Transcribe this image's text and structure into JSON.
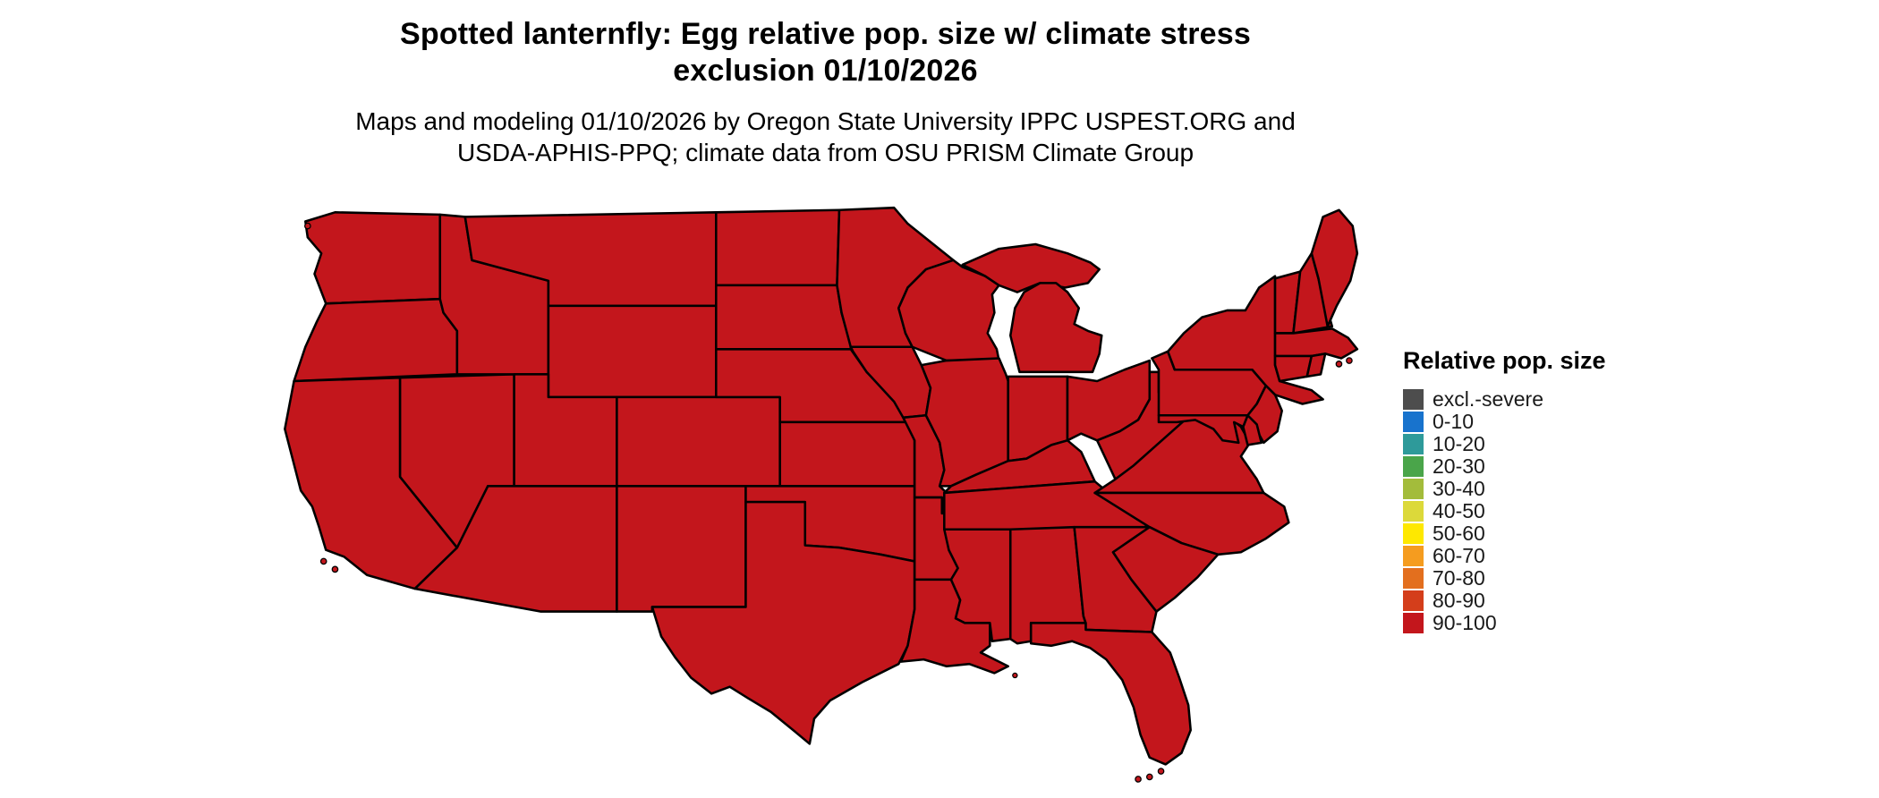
{
  "page": {
    "background": "#ffffff"
  },
  "title": {
    "line1": "Spotted lanternfly: Egg relative pop. size w/ climate stress",
    "line2": "exclusion 01/10/2026"
  },
  "subtitle": {
    "line1": "Maps and modeling 01/10/2026 by Oregon State University IPPC USPEST.ORG and",
    "line2": "USDA-APHIS-PPQ; climate data from OSU PRISM Climate Group"
  },
  "legend": {
    "title": "Relative pop. size",
    "items": [
      {
        "label": "excl.-severe",
        "color": "#4d4d4d"
      },
      {
        "label": "0-10",
        "color": "#1873cd"
      },
      {
        "label": "10-20",
        "color": "#2e9a9a"
      },
      {
        "label": "20-30",
        "color": "#4aa54a"
      },
      {
        "label": "30-40",
        "color": "#a3bc3b"
      },
      {
        "label": "40-50",
        "color": "#dcd93a"
      },
      {
        "label": "50-60",
        "color": "#fee800"
      },
      {
        "label": "60-70",
        "color": "#f59c1f"
      },
      {
        "label": "70-80",
        "color": "#e36f1e"
      },
      {
        "label": "80-90",
        "color": "#d43e1b"
      },
      {
        "label": "90-100",
        "color": "#c3161c"
      }
    ]
  },
  "map": {
    "region": "contiguous United States",
    "border_color": "#000000",
    "all_states_category": "90-100",
    "fill_color": "#c3161c",
    "states": [
      "Washington",
      "Oregon",
      "California",
      "Nevada",
      "Idaho",
      "Montana",
      "Wyoming",
      "Utah",
      "Colorado",
      "Arizona",
      "New Mexico",
      "North Dakota",
      "South Dakota",
      "Nebraska",
      "Kansas",
      "Oklahoma",
      "Texas",
      "Minnesota",
      "Iowa",
      "Missouri",
      "Arkansas",
      "Louisiana",
      "Wisconsin",
      "Michigan",
      "Illinois",
      "Indiana",
      "Ohio",
      "Kentucky",
      "Tennessee",
      "Mississippi",
      "Alabama",
      "Georgia",
      "Florida",
      "West Virginia",
      "Virginia",
      "North Carolina",
      "South Carolina",
      "Pennsylvania",
      "New York",
      "New Jersey",
      "Delaware",
      "Maryland",
      "Vermont",
      "New Hampshire",
      "Maine",
      "Massachusetts",
      "Connecticut",
      "Rhode Island"
    ]
  }
}
